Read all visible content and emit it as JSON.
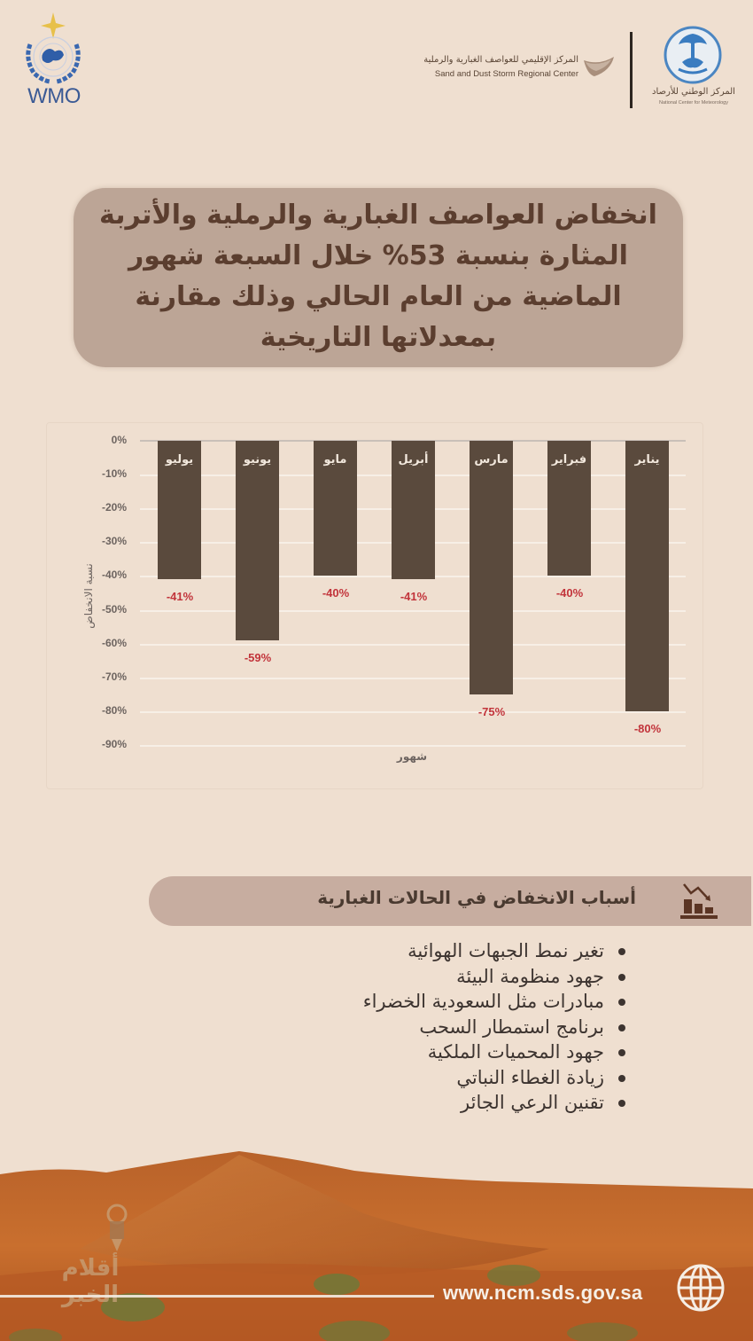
{
  "header": {
    "wmo_logo_text": "WMO",
    "sds_center_ar": "المركز الإقليمي للعواصف الغبارية والرملية",
    "sds_center_en": "Sand and Dust Storm Regional Center",
    "ncm_ar": "المركز الوطني للأرصاد",
    "ncm_en": "National Center for Meteorology"
  },
  "headline": "انخفاض العواصف الغبارية والرملية والأتربة المثارة بنسبة 53% خلال السبعة شهور الماضية من العام الحالي وذلك مقارنة بمعدلاتها التاريخية",
  "chart_data": {
    "type": "bar",
    "title": "",
    "categories": [
      "يوليو",
      "يونيو",
      "مايو",
      "أبريل",
      "مارس",
      "فبراير",
      "يناير"
    ],
    "values": [
      -41,
      -59,
      -40,
      -41,
      -75,
      -40,
      -80
    ],
    "value_labels": [
      "-41%",
      "-59%",
      "-40%",
      "-41%",
      "-75%",
      "-40%",
      "-80%"
    ],
    "xlabel": "شهور",
    "ylabel": "نسبة الانخفاض",
    "yticks": [
      "0%",
      "-10%",
      "-20%",
      "-30%",
      "-40%",
      "-50%",
      "-60%",
      "-70%",
      "-80%",
      "-90%"
    ],
    "ylim": [
      -90,
      0
    ],
    "grid": true,
    "legend": "none",
    "bar_color": "#5a4a3d",
    "label_color": "#c2343b"
  },
  "reasons": {
    "title": "أسباب الانخفاض في الحالات الغبارية",
    "icon": "chart-decline-icon",
    "items": [
      "تغير نمط الجبهات الهوائية",
      "جهود منظومة البيئة",
      "مبادرات مثل السعودية الخضراء",
      "برنامج استمطار السحب",
      "جهود المحميات الملكية",
      "زيادة الغطاء النباتي",
      "تقنين الرعي الجائر"
    ]
  },
  "footer": {
    "url": "www.ncm.sds.gov.sa",
    "icon": "globe-icon",
    "watermark": "أقلام الخبر"
  },
  "colors": {
    "background": "#efdfd0",
    "headline_box": "#bca596",
    "headline_text": "#5b3e2f",
    "bar": "#5a4a3d",
    "value_label": "#c2343b",
    "reasons_header": "#c7ada0"
  }
}
